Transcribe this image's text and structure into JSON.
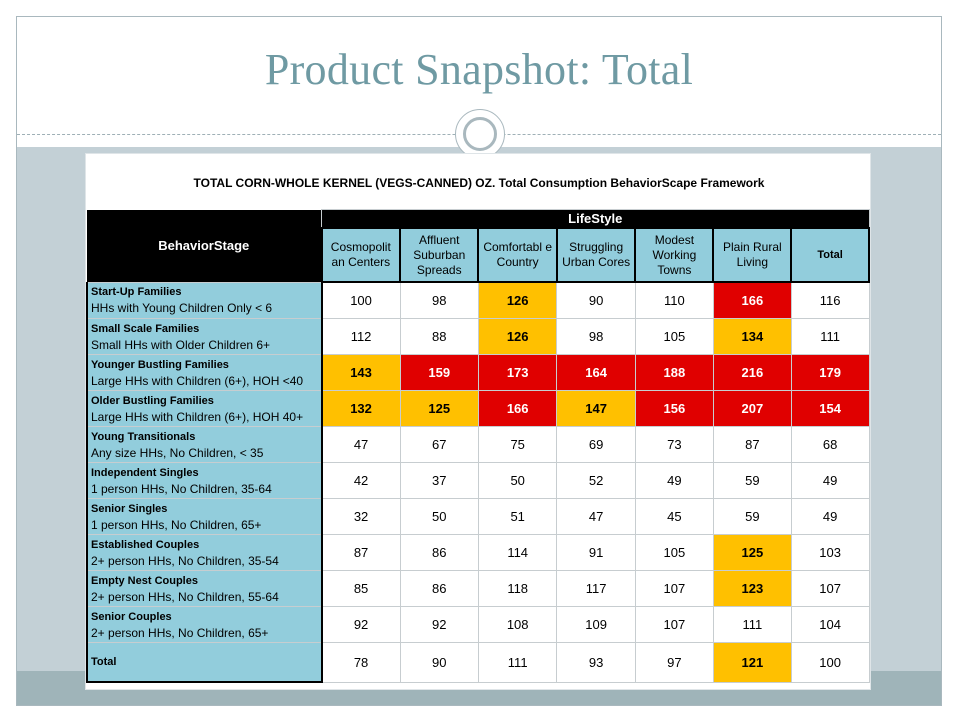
{
  "slide": {
    "title": "Product Snapshot: Total"
  },
  "table": {
    "title": "TOTAL CORN-WHOLE KERNEL (VEGS-CANNED) OZ.  Total Consumption BehaviorScape Framework",
    "lifestyle_label": "LifeStyle",
    "behaviorstage_label": "BehaviorStage",
    "columns": [
      "Cosmopolit an Centers",
      "Affluent Suburban Spreads",
      "Comfortabl e Country",
      "Struggling Urban Cores",
      "Modest Working Towns",
      "Plain Rural Living",
      "Total"
    ],
    "rows": [
      {
        "title": "Start-Up Families",
        "sub": "HHs with Young Children Only < 6",
        "values": [
          "100",
          "98",
          "126",
          "90",
          "110",
          "166",
          "116"
        ],
        "highlight": [
          "",
          "",
          "yellow",
          "",
          "",
          "red",
          ""
        ]
      },
      {
        "title": "Small Scale Families",
        "sub": "Small HHs with Older Children 6+",
        "values": [
          "112",
          "88",
          "126",
          "98",
          "105",
          "134",
          "111"
        ],
        "highlight": [
          "",
          "",
          "yellow",
          "",
          "",
          "yellow",
          ""
        ]
      },
      {
        "title": "Younger Bustling Families",
        "sub": "Large HHs with Children (6+), HOH <40",
        "values": [
          "143",
          "159",
          "173",
          "164",
          "188",
          "216",
          "179"
        ],
        "highlight": [
          "yellow",
          "red",
          "red",
          "red",
          "red",
          "red",
          "red"
        ]
      },
      {
        "title": "Older Bustling Families",
        "sub": "Large HHs with Children (6+), HOH 40+",
        "values": [
          "132",
          "125",
          "166",
          "147",
          "156",
          "207",
          "154"
        ],
        "highlight": [
          "yellow",
          "yellow",
          "red",
          "yellow",
          "red",
          "red",
          "red"
        ]
      },
      {
        "title": "Young Transitionals",
        "sub": "Any size HHs, No Children, < 35",
        "values": [
          "47",
          "67",
          "75",
          "69",
          "73",
          "87",
          "68"
        ],
        "highlight": [
          "",
          "",
          "",
          "",
          "",
          "",
          ""
        ]
      },
      {
        "title": "Independent Singles",
        "sub": "1 person HHs, No Children, 35-64",
        "values": [
          "42",
          "37",
          "50",
          "52",
          "49",
          "59",
          "49"
        ],
        "highlight": [
          "",
          "",
          "",
          "",
          "",
          "",
          ""
        ]
      },
      {
        "title": "Senior Singles",
        "sub": "1 person HHs, No Children, 65+",
        "values": [
          "32",
          "50",
          "51",
          "47",
          "45",
          "59",
          "49"
        ],
        "highlight": [
          "",
          "",
          "",
          "",
          "",
          "",
          ""
        ]
      },
      {
        "title": "Established Couples",
        "sub": "2+ person HHs, No Children, 35-54",
        "values": [
          "87",
          "86",
          "114",
          "91",
          "105",
          "125",
          "103"
        ],
        "highlight": [
          "",
          "",
          "",
          "",
          "",
          "yellow",
          ""
        ]
      },
      {
        "title": "Empty Nest Couples",
        "sub": "2+ person HHs, No Children, 55-64",
        "values": [
          "85",
          "86",
          "118",
          "117",
          "107",
          "123",
          "107"
        ],
        "highlight": [
          "",
          "",
          "",
          "",
          "",
          "yellow",
          ""
        ]
      },
      {
        "title": "Senior Couples",
        "sub": "2+ person HHs, No Children, 65+",
        "values": [
          "92",
          "92",
          "108",
          "109",
          "107",
          "111",
          "104"
        ],
        "highlight": [
          "",
          "",
          "",
          "",
          "",
          "",
          ""
        ]
      }
    ],
    "total_row": {
      "label": "Total",
      "values": [
        "78",
        "90",
        "111",
        "93",
        "97",
        "121",
        "100"
      ],
      "highlight": [
        "",
        "",
        "",
        "",
        "",
        "yellow",
        ""
      ]
    },
    "colors": {
      "header_blue": "#92cddc",
      "yellow": "#ffc000",
      "red": "#e00000",
      "black": "#000000"
    }
  }
}
